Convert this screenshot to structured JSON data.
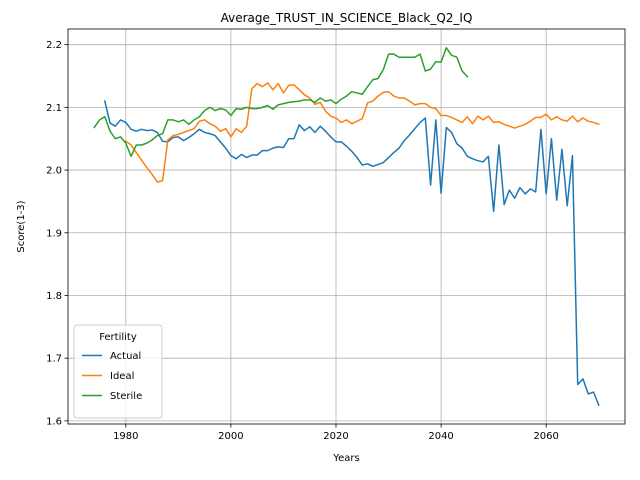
{
  "chart_data": {
    "type": "line",
    "title": "Average_TRUST_IN_SCIENCE_Black_Q2_IQ",
    "xlabel": "Years",
    "ylabel": "Score(1-3)",
    "xlim": [
      1969,
      2075
    ],
    "ylim": [
      1.595,
      2.225
    ],
    "xticks": [
      1980,
      2000,
      2020,
      2040,
      2060
    ],
    "yticks": [
      1.6,
      1.7,
      1.8,
      1.9,
      2.0,
      2.1,
      2.2
    ],
    "grid": true,
    "legend": {
      "title": "Fertility",
      "placement": "bottom-left"
    },
    "series": [
      {
        "name": "Actual",
        "color": "#1f77b4",
        "x": [
          1976,
          1977,
          1978,
          1979,
          1980,
          1981,
          1982,
          1983,
          1984,
          1985,
          1986,
          1987,
          1988,
          1989,
          1990,
          1991,
          1992,
          1993,
          1994,
          1995,
          1996,
          1997,
          1998,
          1999,
          2000,
          2001,
          2002,
          2003,
          2004,
          2005,
          2006,
          2007,
          2008,
          2009,
          2010,
          2011,
          2012,
          2013,
          2014,
          2015,
          2016,
          2017,
          2018,
          2019,
          2020,
          2021,
          2022,
          2023,
          2024,
          2025,
          2026,
          2027,
          2028,
          2029,
          2030,
          2031,
          2032,
          2033,
          2034,
          2035,
          2036,
          2037,
          2038,
          2039,
          2040,
          2041,
          2042,
          2043,
          2044,
          2045,
          2046,
          2047,
          2048,
          2049,
          2050,
          2051,
          2052,
          2053,
          2054,
          2055,
          2056,
          2057,
          2058,
          2059,
          2060,
          2061,
          2062,
          2063,
          2064,
          2065,
          2066,
          2067,
          2068,
          2069,
          2070
        ],
        "y": [
          2.11,
          2.075,
          2.07,
          2.08,
          2.076,
          2.065,
          2.062,
          2.065,
          2.063,
          2.064,
          2.06,
          2.046,
          2.045,
          2.052,
          2.053,
          2.047,
          2.052,
          2.058,
          2.065,
          2.06,
          2.058,
          2.055,
          2.045,
          2.035,
          2.023,
          2.018,
          2.025,
          2.02,
          2.024,
          2.024,
          2.031,
          2.031,
          2.035,
          2.037,
          2.036,
          2.05,
          2.05,
          2.072,
          2.063,
          2.069,
          2.06,
          2.07,
          2.062,
          2.053,
          2.045,
          2.045,
          2.038,
          2.03,
          2.02,
          2.008,
          2.01,
          2.006,
          2.009,
          2.012,
          2.02,
          2.028,
          2.035,
          2.047,
          2.056,
          2.066,
          2.076,
          2.083,
          1.976,
          2.08,
          1.963,
          2.068,
          2.06,
          2.042,
          2.035,
          2.022,
          2.018,
          2.015,
          2.013,
          2.022,
          1.934,
          2.04,
          1.945,
          1.968,
          1.955,
          1.972,
          1.962,
          1.97,
          1.965,
          2.065,
          1.962,
          2.05,
          1.952,
          2.033,
          1.943,
          2.023,
          1.658,
          1.667,
          1.643,
          1.646,
          1.625
        ]
      },
      {
        "name": "Ideal",
        "color": "#ff7f0e",
        "x": [
          1980,
          1981,
          1982,
          1983,
          1984,
          1985,
          1986,
          1987,
          1988,
          1989,
          1990,
          1991,
          1992,
          1993,
          1994,
          1995,
          1996,
          1997,
          1998,
          1999,
          2000,
          2001,
          2002,
          2003,
          2004,
          2005,
          2006,
          2007,
          2008,
          2009,
          2010,
          2011,
          2012,
          2013,
          2014,
          2015,
          2016,
          2017,
          2018,
          2019,
          2020,
          2021,
          2022,
          2023,
          2024,
          2025,
          2026,
          2027,
          2028,
          2029,
          2030,
          2031,
          2032,
          2033,
          2034,
          2035,
          2036,
          2037,
          2038,
          2039,
          2040,
          2041,
          2042,
          2043,
          2044,
          2045,
          2046,
          2047,
          2048,
          2049,
          2050,
          2051,
          2052,
          2053,
          2054,
          2055,
          2056,
          2057,
          2058,
          2059,
          2060,
          2061,
          2062,
          2063,
          2064,
          2065,
          2066,
          2067,
          2068,
          2069,
          2070
        ],
        "y": [
          2.046,
          2.04,
          2.028,
          2.016,
          2.004,
          1.993,
          1.981,
          1.983,
          2.048,
          2.055,
          2.057,
          2.06,
          2.063,
          2.066,
          2.078,
          2.08,
          2.074,
          2.07,
          2.062,
          2.066,
          2.053,
          2.066,
          2.06,
          2.07,
          2.13,
          2.138,
          2.133,
          2.139,
          2.128,
          2.138,
          2.123,
          2.135,
          2.136,
          2.128,
          2.12,
          2.115,
          2.105,
          2.108,
          2.094,
          2.086,
          2.083,
          2.076,
          2.08,
          2.074,
          2.078,
          2.082,
          2.107,
          2.11,
          2.118,
          2.124,
          2.125,
          2.118,
          2.115,
          2.115,
          2.11,
          2.104,
          2.106,
          2.106,
          2.1,
          2.098,
          2.087,
          2.087,
          2.084,
          2.08,
          2.076,
          2.085,
          2.074,
          2.086,
          2.08,
          2.086,
          2.076,
          2.077,
          2.073,
          2.07,
          2.067,
          2.07,
          2.073,
          2.078,
          2.084,
          2.084,
          2.089,
          2.08,
          2.085,
          2.08,
          2.078,
          2.086,
          2.077,
          2.083,
          2.078,
          2.076,
          2.073
        ]
      },
      {
        "name": "Sterile",
        "color": "#2ca02c",
        "x": [
          1974,
          1975,
          1976,
          1977,
          1978,
          1979,
          1980,
          1981,
          1982,
          1983,
          1984,
          1985,
          1986,
          1987,
          1988,
          1989,
          1990,
          1991,
          1992,
          1993,
          1994,
          1995,
          1996,
          1997,
          1998,
          1999,
          2000,
          2001,
          2002,
          2003,
          2004,
          2005,
          2006,
          2007,
          2008,
          2009,
          2010,
          2011,
          2012,
          2013,
          2014,
          2015,
          2016,
          2017,
          2018,
          2019,
          2020,
          2021,
          2022,
          2023,
          2024,
          2025,
          2026,
          2027,
          2028,
          2029,
          2030,
          2031,
          2032,
          2033,
          2034,
          2035,
          2036,
          2037,
          2038,
          2039,
          2040,
          2041,
          2042,
          2043,
          2044,
          2045
        ],
        "y": [
          2.068,
          2.08,
          2.085,
          2.062,
          2.05,
          2.053,
          2.043,
          2.022,
          2.04,
          2.04,
          2.043,
          2.048,
          2.055,
          2.058,
          2.08,
          2.08,
          2.077,
          2.08,
          2.073,
          2.08,
          2.085,
          2.095,
          2.1,
          2.095,
          2.098,
          2.096,
          2.087,
          2.098,
          2.097,
          2.1,
          2.098,
          2.098,
          2.1,
          2.103,
          2.097,
          2.104,
          2.106,
          2.108,
          2.109,
          2.11,
          2.112,
          2.112,
          2.108,
          2.115,
          2.11,
          2.112,
          2.106,
          2.113,
          2.118,
          2.125,
          2.123,
          2.121,
          2.133,
          2.144,
          2.146,
          2.16,
          2.185,
          2.185,
          2.18,
          2.18,
          2.18,
          2.18,
          2.185,
          2.158,
          2.161,
          2.173,
          2.172,
          2.195,
          2.183,
          2.18,
          2.158,
          2.149
        ]
      }
    ]
  }
}
